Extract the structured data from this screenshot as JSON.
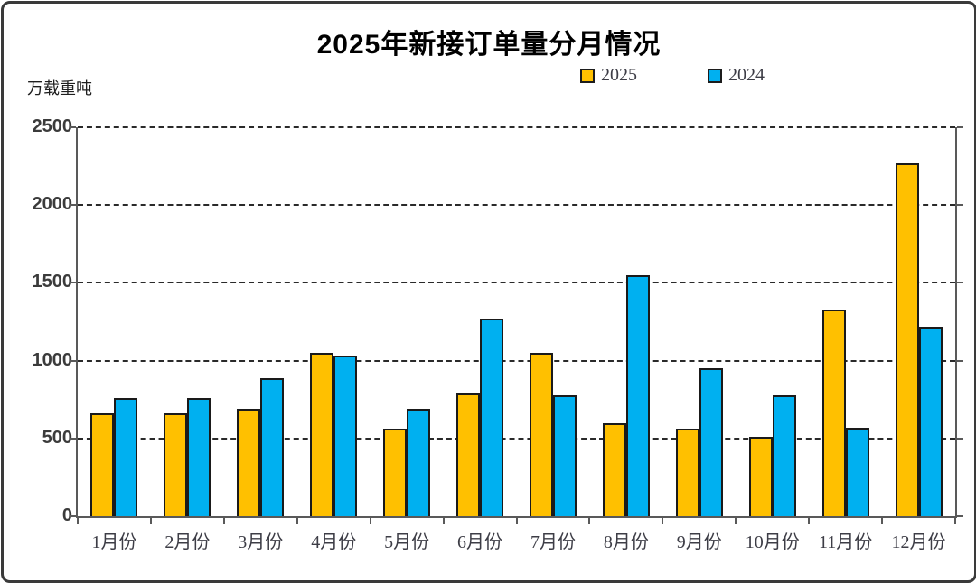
{
  "header": {
    "title": "2025年新接订单量分月情况"
  },
  "y_axis": {
    "unit_label": "万载重吨",
    "ticks": [
      0,
      500,
      1000,
      1500,
      2000,
      2500
    ]
  },
  "legend": {
    "items": [
      {
        "label": "2025",
        "color": "#FFC000"
      },
      {
        "label": "2024",
        "color": "#00B0F0"
      }
    ]
  },
  "colors": {
    "series_2025": "#FFC000",
    "series_2024": "#00B0F0",
    "bar_border": "#1a1a1a",
    "axis": "#595959",
    "grid": "#2a2a2a"
  },
  "chart_data": {
    "type": "bar",
    "title": "2025年新接订单量分月情况",
    "ylabel": "万载重吨",
    "xlabel": "",
    "categories": [
      "1月份",
      "2月份",
      "3月份",
      "4月份",
      "5月份",
      "6月份",
      "7月份",
      "8月份",
      "9月份",
      "10月份",
      "11月份",
      "12月份"
    ],
    "series": [
      {
        "name": "2025",
        "color": "#FFC000",
        "values": [
          660,
          660,
          690,
          1050,
          560,
          790,
          1050,
          600,
          560,
          510,
          1330,
          2270
        ]
      },
      {
        "name": "2024",
        "color": "#00B0F0",
        "values": [
          760,
          760,
          890,
          1030,
          690,
          1270,
          780,
          1550,
          950,
          780,
          570,
          1220
        ]
      }
    ],
    "ylim": [
      0,
      2500
    ],
    "yticks": [
      0,
      500,
      1000,
      1500,
      2000,
      2500
    ],
    "grid": "horizontal-dashed",
    "legend_position": "top-center"
  }
}
